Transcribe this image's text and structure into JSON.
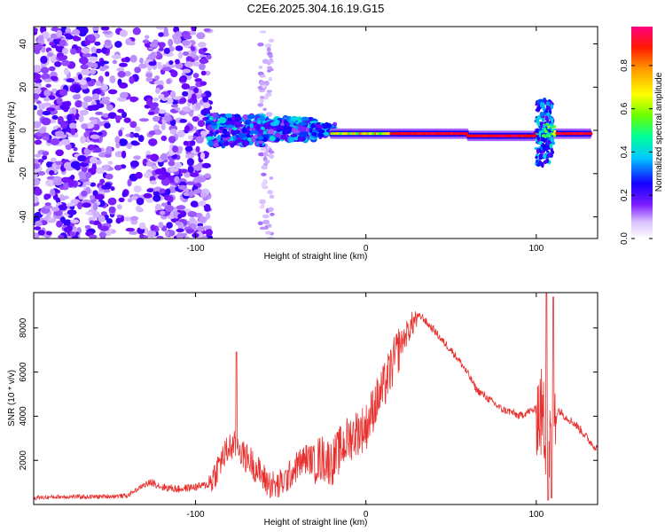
{
  "title": "C2E6.2025.304.16.19.G15",
  "chart_data": [
    {
      "type": "heatmap",
      "title": "C2E6.2025.304.16.19.G15",
      "xlabel": "Height of straight line (km)",
      "ylabel": "Frequency (Hz)",
      "xlim": [
        -195,
        136
      ],
      "ylim": [
        -50,
        48
      ],
      "xticks": [
        -100,
        0,
        100
      ],
      "xtick_labels": [
        "-100",
        "0",
        "100"
      ],
      "yticks": [
        -40,
        -20,
        0,
        20,
        40
      ],
      "ytick_labels": [
        "-40",
        "-20",
        "0",
        "20",
        "40"
      ],
      "colorbar": {
        "label": "Normalized spectral amplitude",
        "range": [
          0,
          0.98
        ],
        "ticks": [
          0,
          0.2,
          0.4,
          0.6,
          0.8
        ],
        "tick_labels": [
          "0.0",
          "0.2",
          "0.4",
          "0.6",
          "0.8"
        ],
        "colors": [
          "#ffffff",
          "#b07cff",
          "#6a00ff",
          "#0000ff",
          "#00c8ff",
          "#00ff80",
          "#6aff00",
          "#ffff00",
          "#ff9a00",
          "#ff0000",
          "#ff0080"
        ]
      },
      "features": [
        {
          "name": "scattered low-amplitude noise",
          "x_range": [
            -195,
            -92
          ],
          "y_range": [
            -50,
            48
          ],
          "amplitude": 0.1
        },
        {
          "name": "scattered noise band",
          "x_range": [
            -62,
            -55
          ],
          "y_range": [
            -50,
            48
          ],
          "amplitude": 0.05
        },
        {
          "name": "signal onset",
          "x_range": [
            -92,
            -30
          ],
          "y_range": [
            -8,
            8
          ],
          "amplitude": 0.3
        },
        {
          "name": "narrowband carrier",
          "x_range": [
            -20,
            132
          ],
          "y_range": [
            -4,
            2
          ],
          "amplitude": 0.95
        },
        {
          "name": "broadband spike",
          "x_range": [
            100,
            110
          ],
          "y_range": [
            -16,
            14
          ],
          "amplitude": 0.35
        }
      ]
    },
    {
      "type": "line",
      "xlabel": "Height of straight line (km)",
      "ylabel": "SNR (10 * v/v)",
      "xlim": [
        -195,
        136
      ],
      "ylim": [
        0,
        9600
      ],
      "xticks": [
        -100,
        0,
        100
      ],
      "xtick_labels": [
        "-100",
        "0",
        "100"
      ],
      "yticks": [
        2000,
        4000,
        6000,
        8000
      ],
      "ytick_labels": [
        "2000",
        "4000",
        "6000",
        "8000"
      ],
      "series": [
        {
          "name": "SNR",
          "color": "#e8302e",
          "x": [
            -195,
            -180,
            -160,
            -140,
            -130,
            -125,
            -120,
            -110,
            -100,
            -92,
            -88,
            -85,
            -80,
            -75,
            -72,
            -68,
            -63,
            -58,
            -52,
            -46,
            -40,
            -35,
            -30,
            -25,
            -20,
            -15,
            -10,
            -5,
            0,
            5,
            10,
            15,
            20,
            25,
            30,
            33,
            36,
            40,
            45,
            50,
            55,
            60,
            65,
            70,
            75,
            80,
            85,
            90,
            95,
            100,
            103,
            105,
            107,
            109,
            111,
            113,
            117,
            122,
            127,
            131,
            136
          ],
          "values": [
            300,
            350,
            350,
            400,
            900,
            1000,
            800,
            700,
            800,
            900,
            1500,
            2000,
            2600,
            2700,
            2200,
            2000,
            1500,
            1000,
            800,
            1200,
            1800,
            2100,
            2000,
            2100,
            1900,
            2500,
            3000,
            3300,
            3500,
            4500,
            5200,
            6200,
            7200,
            7900,
            8500,
            8500,
            8200,
            7900,
            7400,
            7000,
            6500,
            5900,
            5200,
            4900,
            4600,
            4300,
            4200,
            4000,
            4200,
            4300,
            4100,
            3500,
            2500,
            3000,
            4000,
            4300,
            4000,
            3700,
            3300,
            2900,
            2500
          ],
          "spikes": [
            {
              "x": -76,
              "value": 6900
            },
            {
              "x": 106,
              "value": 9600
            },
            {
              "x": 110,
              "value": 9400
            },
            {
              "x": 107,
              "value": 200
            },
            {
              "x": 109,
              "value": 300
            }
          ]
        }
      ]
    }
  ]
}
